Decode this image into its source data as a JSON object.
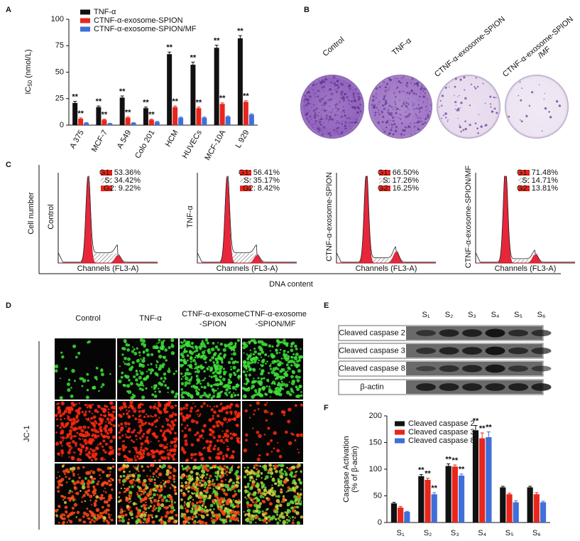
{
  "panel_labels": [
    "A",
    "B",
    "C",
    "D",
    "E",
    "F"
  ],
  "chart_data": [
    {
      "type": "bar",
      "y_label": {
        "main": "IC",
        "sub": "50",
        "unit": " (nmol/L)"
      },
      "categories": [
        "A 375",
        "MCF-7",
        "A 549",
        "Colo 201",
        "HCM",
        "HUVECs",
        "MCF-10A",
        "L 929"
      ],
      "ylim": [
        0,
        100
      ],
      "yticks": [
        0,
        25,
        50,
        75,
        100
      ],
      "legend": "upper left",
      "series": [
        {
          "name": "TNF-α",
          "color": "#111111",
          "values": [
            21,
            17,
            26,
            16,
            67,
            57,
            73,
            82
          ],
          "errors": [
            1.5,
            1,
            1.5,
            1,
            2,
            2.5,
            2.5,
            2.5
          ],
          "sig": [
            "**",
            "**",
            "**",
            "**",
            "**",
            "**",
            "**",
            "**"
          ],
          "sig_colors": [
            "#111111",
            "#111111",
            "#2a3fbd",
            "#2a3fbd",
            "#2a3fbd",
            "#2a3fbd",
            "#111111",
            "#111111"
          ]
        },
        {
          "name": "CTNF-α-exosome-SPION",
          "color": "#e8261c",
          "values": [
            6,
            5,
            7,
            5,
            17,
            16,
            20,
            22
          ],
          "errors": [
            0.8,
            0.6,
            0.8,
            0.6,
            1,
            1,
            1,
            1
          ],
          "sig": [
            "**",
            "**",
            "**",
            "**",
            "**",
            "**",
            "**",
            "**"
          ],
          "sig_colors": [
            "#111111",
            "#111111",
            "#111111",
            "#111111",
            "#111111",
            "#111111",
            "#111111",
            "#111111"
          ]
        },
        {
          "name": "CTNF-α-exosome-SPION/MF",
          "color": "#3f6fd8",
          "values": [
            2,
            1.5,
            2,
            3,
            7,
            7,
            8,
            10
          ],
          "errors": [
            0.4,
            0.3,
            0.4,
            0.5,
            0.6,
            0.6,
            0.6,
            0.7
          ]
        }
      ]
    },
    {
      "type": "bar",
      "y_label": [
        "Caspase Activation",
        "(% of β-actin)"
      ],
      "categories": [
        "S₁",
        "S₂",
        "S₃",
        "S₄",
        "S₅",
        "S₆"
      ],
      "ylim": [
        0,
        200
      ],
      "yticks": [
        0,
        50,
        100,
        150,
        200
      ],
      "legend": "upper left",
      "series": [
        {
          "name": "Cleaved caspase 2",
          "color": "#111111",
          "values": [
            36,
            87,
            106,
            173,
            66,
            66
          ],
          "errors": [
            2,
            3,
            4,
            9,
            2,
            2
          ],
          "sig": [
            null,
            "**",
            "**",
            "**",
            null,
            null
          ],
          "sig_colors": [
            "#111111",
            "#111111",
            "#111111",
            "#111111",
            "#111111",
            "#111111"
          ]
        },
        {
          "name": "Cleaved caspase 3",
          "color": "#e8261c",
          "values": [
            28,
            80,
            105,
            158,
            53,
            53
          ],
          "errors": [
            2,
            3,
            3,
            10,
            2,
            3
          ],
          "sig": [
            null,
            "**",
            "**",
            "**",
            null,
            null
          ],
          "sig_colors": [
            "#e8261c",
            "#e8261c",
            "#e8261c",
            "#e8261c",
            "#e8261c",
            "#e8261c"
          ]
        },
        {
          "name": "Cleaved caspase 8",
          "color": "#3f6fd8",
          "values": [
            20,
            53,
            88,
            160,
            38,
            38
          ],
          "errors": [
            1,
            3,
            3,
            10,
            3,
            2
          ],
          "sig": [
            null,
            "**",
            "**",
            "**",
            null,
            null
          ],
          "sig_colors": [
            "#2a3fbd",
            "#2a3fbd",
            "#2a3fbd",
            "#2a3fbd",
            "#2a3fbd",
            "#2a3fbd"
          ]
        }
      ]
    }
  ],
  "panel_b": {
    "labels": [
      [
        "Control"
      ],
      [
        "TNF-α"
      ],
      [
        "CTNF-α-exosome-SPION"
      ],
      [
        "CTNF-α-exosome-SPION",
        "/MF"
      ]
    ]
  },
  "panel_c": {
    "y_label": "Cell number",
    "x_label": "DNA content",
    "channel_label": "Channels (FL3-A)",
    "plots": [
      {
        "label": "Control",
        "g1": "G1: 53.36%",
        "s": "S: 34.42%",
        "g2": "G2: 9.22%"
      },
      {
        "label": "TNF-α",
        "g1": "G1: 56.41%",
        "s": "S: 35.17%",
        "g2": "G2: 8.42%"
      },
      {
        "label": "CTNF-α-exosome-SPION",
        "g1": "G1: 66.50%",
        "s": "S: 17.26%",
        "g2": "G2: 16.25%"
      },
      {
        "label": "CTNF-α-exosome-SPION/MF",
        "g1": "G1: 71.48%",
        "s": "S: 14.71%",
        "g2": "G2: 13.81%"
      }
    ]
  },
  "panel_d": {
    "columns": [
      [
        "Control"
      ],
      [
        "TNF-α"
      ],
      [
        "CTNF-α-exosome",
        "-SPION"
      ],
      [
        "CTNF-α-exosome",
        "-SPION/MF"
      ]
    ],
    "row_label": "JC-1"
  },
  "panel_e": {
    "lanes": [
      "S₁",
      "S₂",
      "S₃",
      "S₄",
      "S₅",
      "S₆"
    ],
    "rows": [
      "Cleaved caspase 2",
      "Cleaved caspase 3",
      "Cleaved caspase 8",
      "β-actin"
    ]
  }
}
